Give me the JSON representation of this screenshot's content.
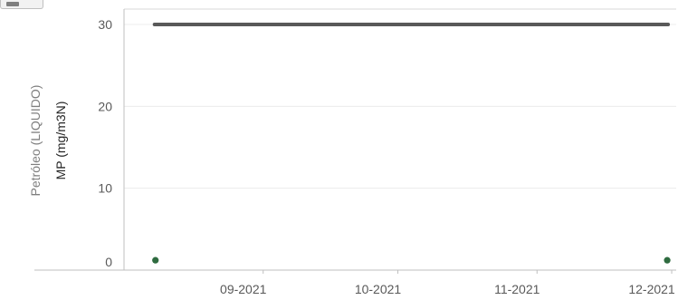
{
  "chart_data": {
    "type": "line",
    "title": "",
    "xlabel": "",
    "ylabel": "MP (mg/m3N)",
    "group_label": "Petróleo (LIQUIDO)",
    "ylim": [
      0,
      30
    ],
    "yticks": [
      0,
      10,
      20,
      30
    ],
    "xlim": [
      "2021-08-01",
      "2021-12-02"
    ],
    "xticks": [
      {
        "label": "09-2021",
        "date": "2021-09-01"
      },
      {
        "label": "10-2021",
        "date": "2021-10-01"
      },
      {
        "label": "11-2021",
        "date": "2021-11-01"
      },
      {
        "label": "12-2021",
        "date": "2021-12-01"
      }
    ],
    "limit_line": {
      "value": 30,
      "start": "2021-08-08",
      "end": "2021-11-30",
      "color": "#595959"
    },
    "points": [
      {
        "date": "2021-08-08",
        "value": 1.2
      },
      {
        "date": "2021-11-30",
        "value": 1.2
      }
    ],
    "point_color": "#2e6b3f",
    "grid": true
  }
}
